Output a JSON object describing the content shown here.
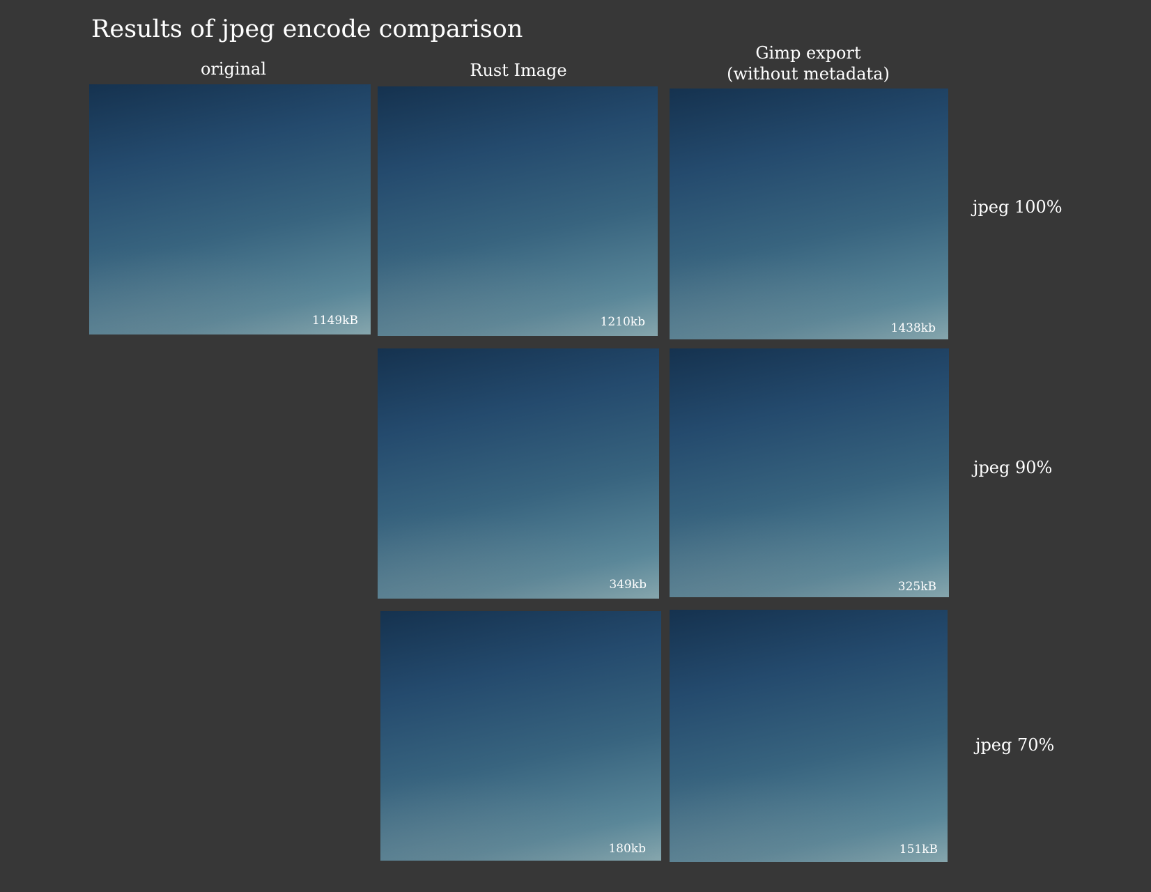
{
  "title": "Results of jpeg encode comparison",
  "columns": {
    "original": "original",
    "rust": "Rust Image",
    "gimp_line1": "Gimp export",
    "gimp_line2": "(without metadata)"
  },
  "rows": {
    "q100": "jpeg 100%",
    "q90": "jpeg 90%",
    "q70": "jpeg 70%"
  },
  "sizes": {
    "original": "1149kB",
    "rust_100": "1210kb",
    "gimp_100": "1438kb",
    "rust_90": "349kb",
    "gimp_90": "325kB",
    "rust_70": "180kb",
    "gimp_70": "151kB"
  }
}
